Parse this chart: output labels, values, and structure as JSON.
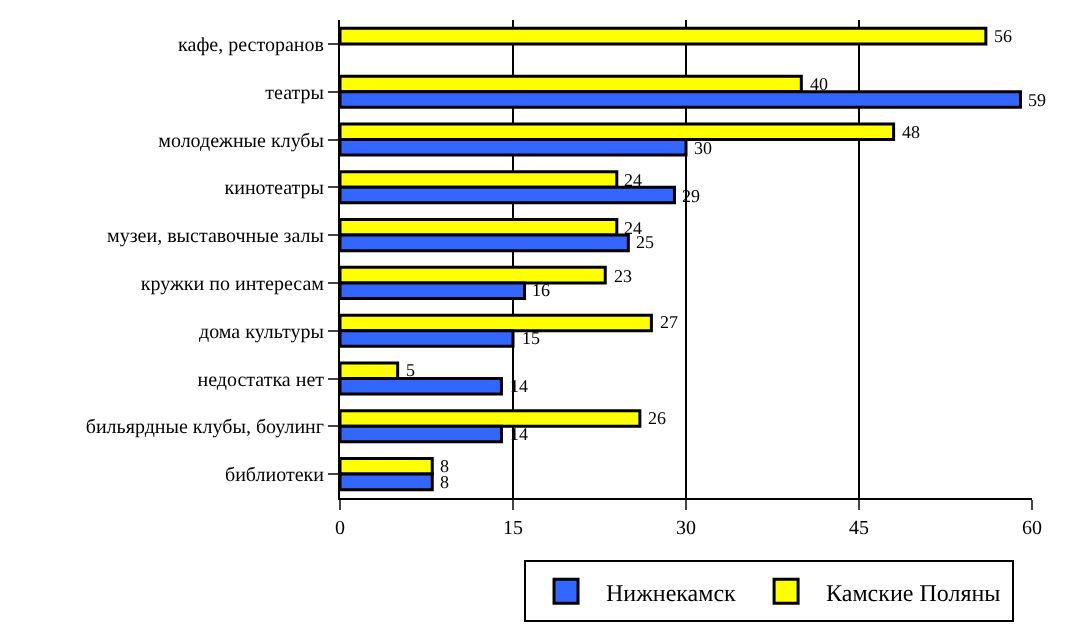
{
  "chart_data": {
    "type": "bar",
    "orientation": "horizontal",
    "categories": [
      "кафе, ресторанов",
      "театры",
      "молодежные клубы",
      "кинотеатры",
      "музеи, выставочные залы",
      "кружки по интересам",
      "дома культуры",
      "недостатка нет",
      "бильярдные клубы, боулинг",
      "библиотеки"
    ],
    "series": [
      {
        "name": "Нижнекамск",
        "color": "#3366ff",
        "values": [
          null,
          59,
          30,
          29,
          25,
          16,
          15,
          14,
          14,
          8
        ]
      },
      {
        "name": "Камские Поляны",
        "color": "#ffff00",
        "values": [
          56,
          40,
          48,
          24,
          24,
          23,
          27,
          5,
          26,
          8
        ]
      }
    ],
    "xlim": [
      0,
      60
    ],
    "xticks": [
      0,
      15,
      30,
      45,
      60
    ],
    "grid": "x",
    "legend": "bottom",
    "data_labels": true
  }
}
